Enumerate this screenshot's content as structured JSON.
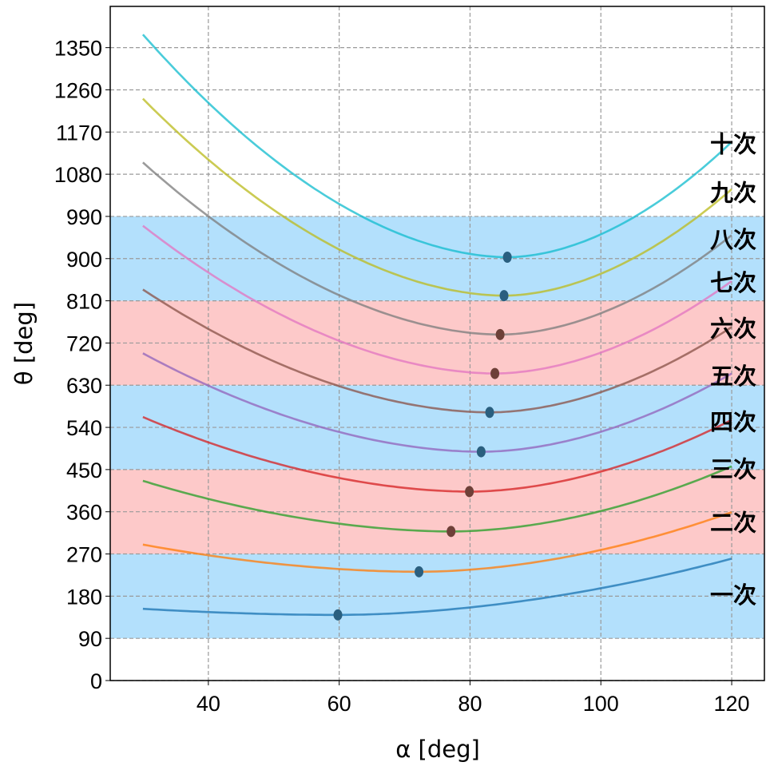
{
  "chart_data": {
    "type": "line",
    "title": "",
    "xlabel": "α [deg]",
    "ylabel": "θ [deg]",
    "xlim": [
      25,
      125
    ],
    "ylim": [
      0,
      1438
    ],
    "xticks": [
      40,
      60,
      80,
      100,
      120
    ],
    "yticks": [
      0,
      90,
      180,
      270,
      360,
      450,
      540,
      630,
      720,
      810,
      900,
      990,
      1080,
      1170,
      1260,
      1350
    ],
    "grid": true,
    "bands": [
      {
        "from": 90,
        "to": 270,
        "color": "#b3e0fc"
      },
      {
        "from": 270,
        "to": 450,
        "color": "#fdc9c9"
      },
      {
        "from": 450,
        "to": 630,
        "color": "#b3e0fc"
      },
      {
        "from": 630,
        "to": 810,
        "color": "#fdc9c9"
      },
      {
        "from": 810,
        "to": 990,
        "color": "#b3e0fc"
      }
    ],
    "series": [
      {
        "name": "一次",
        "color": "#1f77b4",
        "x_start": 30,
        "y_start": 153,
        "x_min": 59.8,
        "y_min": 140,
        "x_end": 120,
        "y_end": 260,
        "label_y": 184,
        "dot_color": "#2a5f7f"
      },
      {
        "name": "二次",
        "color": "#ff7f0e",
        "x_start": 30,
        "y_start": 290,
        "x_min": 72.2,
        "y_min": 232,
        "x_end": 120,
        "y_end": 359,
        "label_y": 338,
        "dot_color": "#2a5f7f"
      },
      {
        "name": "三次",
        "color": "#2ca02c",
        "x_start": 30,
        "y_start": 426,
        "x_min": 77.1,
        "y_min": 318,
        "x_end": 120,
        "y_end": 457,
        "label_y": 452,
        "dot_color": "#6e4038"
      },
      {
        "name": "四次",
        "color": "#d62728",
        "x_start": 30,
        "y_start": 562,
        "x_min": 79.9,
        "y_min": 403,
        "x_end": 120,
        "y_end": 556,
        "label_y": 553,
        "dot_color": "#6e4038"
      },
      {
        "name": "五次",
        "color": "#9467bd",
        "x_start": 30,
        "y_start": 698,
        "x_min": 81.7,
        "y_min": 488,
        "x_end": 120,
        "y_end": 655,
        "label_y": 651,
        "dot_color": "#2a5f7f"
      },
      {
        "name": "六次",
        "color": "#8c564b",
        "x_start": 30,
        "y_start": 834,
        "x_min": 83.0,
        "y_min": 572,
        "x_end": 120,
        "y_end": 754,
        "label_y": 752,
        "dot_color": "#2a5f7f"
      },
      {
        "name": "七次",
        "color": "#e377c2",
        "x_start": 30,
        "y_start": 970,
        "x_min": 83.8,
        "y_min": 655,
        "x_end": 120,
        "y_end": 852,
        "label_y": 850,
        "dot_color": "#6e4038"
      },
      {
        "name": "八次",
        "color": "#7f7f7f",
        "x_start": 30,
        "y_start": 1105,
        "x_min": 84.6,
        "y_min": 738,
        "x_end": 120,
        "y_end": 950,
        "label_y": 942,
        "dot_color": "#6e4038"
      },
      {
        "name": "九次",
        "color": "#bcbd22",
        "x_start": 30,
        "y_start": 1241,
        "x_min": 85.2,
        "y_min": 821,
        "x_end": 120,
        "y_end": 1048,
        "label_y": 1042,
        "dot_color": "#2a5f7f"
      },
      {
        "name": "十次",
        "color": "#17becf",
        "x_start": 30,
        "y_start": 1378,
        "x_min": 85.7,
        "y_min": 903,
        "x_end": 120,
        "y_end": 1149,
        "label_y": 1146,
        "dot_color": "#2a5f7f"
      }
    ]
  }
}
